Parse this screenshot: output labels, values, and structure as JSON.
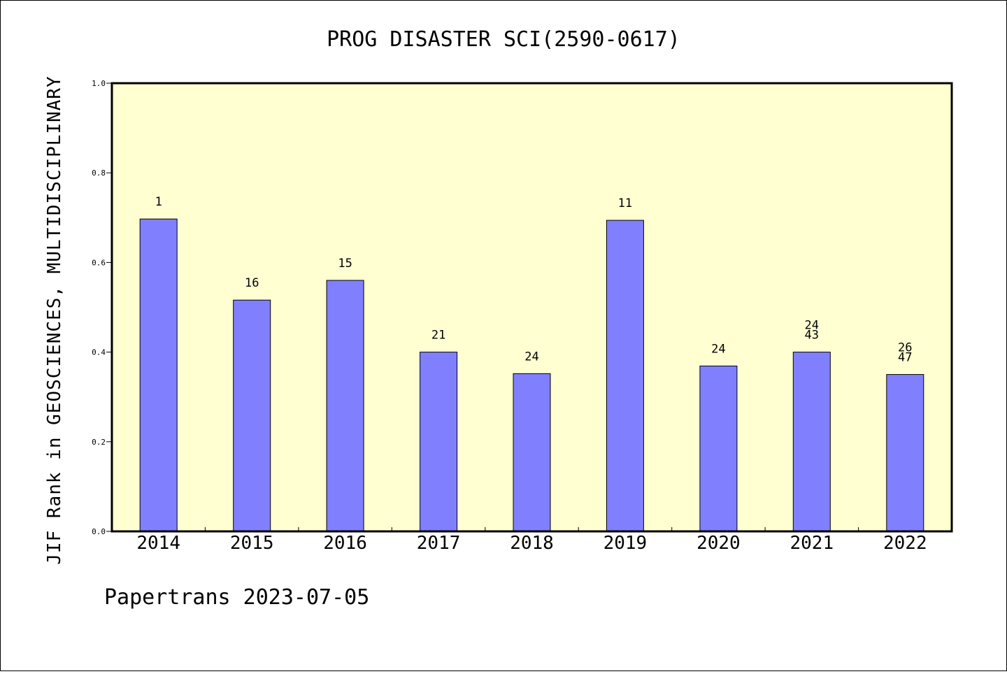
{
  "chart_data": {
    "type": "bar",
    "title": "PROG DISASTER SCI(2590-0617)",
    "xlabel": "",
    "ylabel": "JIF Rank in GEOSCIENCES, MULTIDISCIPLINARY",
    "categories": [
      "2014",
      "2015",
      "2016",
      "2017",
      "2018",
      "2019",
      "2020",
      "2021",
      "2022"
    ],
    "values": [
      0.697,
      0.516,
      0.56,
      0.4,
      0.352,
      0.694,
      0.369,
      0.4,
      0.35
    ],
    "data_labels": [
      [
        "1"
      ],
      [
        "16"
      ],
      [
        "15"
      ],
      [
        "21"
      ],
      [
        "24"
      ],
      [
        "11"
      ],
      [
        "24"
      ],
      [
        "24",
        "43"
      ],
      [
        "26",
        "47"
      ]
    ],
    "ylim": [
      0,
      1.0
    ],
    "yticks": [
      "0.0",
      "0.2",
      "0.4",
      "0.6",
      "0.8",
      "1.0"
    ],
    "grid": false,
    "legend": "none"
  },
  "colors": {
    "plot_background": "#ffffd2",
    "bar_fill": "#8080ff",
    "bar_stroke": "#000000",
    "axis": "#000000"
  },
  "footer": {
    "credit": "Papertrans 2023-07-05"
  }
}
